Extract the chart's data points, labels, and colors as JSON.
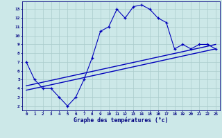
{
  "x": [
    0,
    1,
    2,
    3,
    4,
    5,
    6,
    7,
    8,
    9,
    10,
    11,
    12,
    13,
    14,
    15,
    16,
    17,
    18,
    19,
    20,
    21,
    22,
    23
  ],
  "y_temp": [
    7,
    5,
    4,
    4,
    3,
    2,
    3,
    5,
    7.5,
    10.5,
    11,
    13,
    12,
    13.3,
    13.5,
    13,
    12,
    11.5,
    8.5,
    9,
    8.5,
    9,
    9,
    8.5
  ],
  "trend1_x": [
    0,
    23
  ],
  "trend1_y": [
    4.3,
    9.0
  ],
  "trend2_x": [
    0,
    23
  ],
  "trend2_y": [
    3.8,
    8.5
  ],
  "xlabel": "Graphe des températures (°c)",
  "bg_color": "#cce8e8",
  "line_color": "#0000bb",
  "grid_color": "#aacccc",
  "xtick_labels": [
    "0",
    "1",
    "2",
    "3",
    "4",
    "5",
    "6",
    "7",
    "8",
    "9",
    "10",
    "11",
    "12",
    "13",
    "14",
    "15",
    "16",
    "17",
    "18",
    "19",
    "20",
    "21",
    "22",
    "23"
  ],
  "ytick_labels": [
    "2",
    "3",
    "4",
    "5",
    "6",
    "7",
    "8",
    "9",
    "10",
    "11",
    "12",
    "13"
  ],
  "yticks": [
    2,
    3,
    4,
    5,
    6,
    7,
    8,
    9,
    10,
    11,
    12,
    13
  ],
  "ylim": [
    1.5,
    13.9
  ],
  "xlim": [
    -0.5,
    23.5
  ],
  "figsize": [
    3.2,
    2.0
  ],
  "dpi": 100
}
